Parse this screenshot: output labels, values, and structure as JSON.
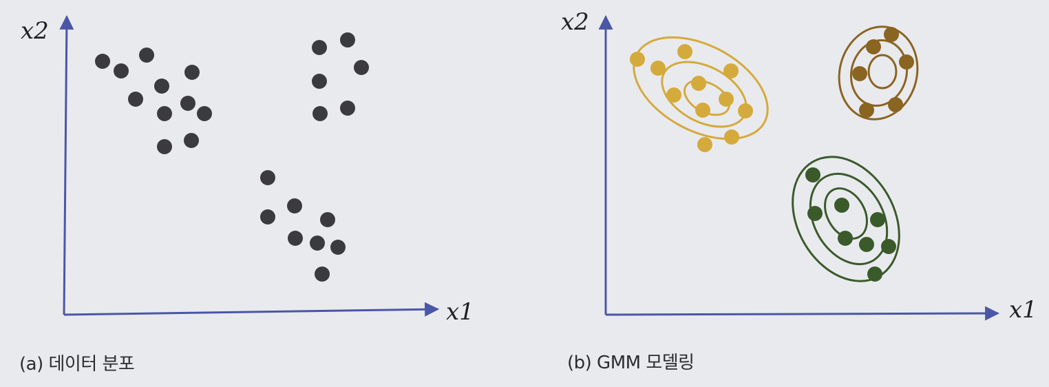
{
  "colors": {
    "background": "#e9eaee",
    "axis": "#4a56a6",
    "panel_a_point": "#3b3b3f",
    "cluster_yellow": "#d5aa3c",
    "cluster_brown": "#8a6421",
    "cluster_green": "#3a5a2a"
  },
  "panel_a": {
    "x_label": "x1",
    "y_label": "x2",
    "caption": "(a) 데이터 분포"
  },
  "panel_b": {
    "x_label": "x1",
    "y_label": "x2",
    "caption": "(b) GMM 모델링"
  }
}
